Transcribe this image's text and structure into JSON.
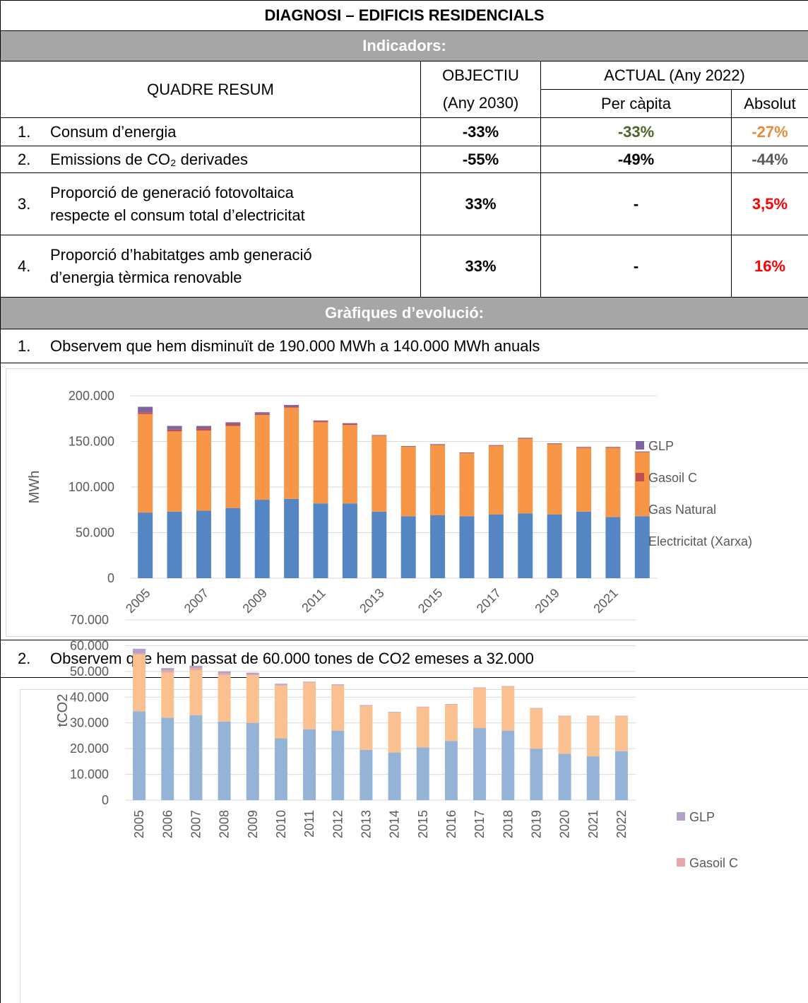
{
  "title": "DIAGNOSI – EDIFICIS RESIDENCIALS",
  "indicators_heading": "Indicadors:",
  "header": {
    "summary": "QUADRE RESUM",
    "target": "OBJECTIU",
    "target_year": "(Any 2030)",
    "current": "ACTUAL (Any 2022)",
    "per_capita": "Per càpita",
    "absolute": "Absolut"
  },
  "rows": [
    {
      "number": "1.",
      "label": [
        "Consum d’energia"
      ],
      "target": "-33%",
      "per_capita": "-33%",
      "per_capita_color": "#4f6228",
      "absolute": "-27%",
      "absolute_color": "#e98a3a"
    },
    {
      "number": "2.",
      "label": [
        "Emissions de CO₂ derivades"
      ],
      "target": "-55%",
      "per_capita": "-49%",
      "per_capita_color": "#000000",
      "absolute": "-44%",
      "absolute_color": "#595959"
    },
    {
      "number": "3.",
      "label": [
        "Proporció de generació fotovoltaica",
        "respecte el consum total d’electricitat"
      ],
      "target": "33%",
      "per_capita": "-",
      "per_capita_color": "#000000",
      "absolute": "3,5%",
      "absolute_color": "#ff0000"
    },
    {
      "number": "4.",
      "label": [
        "Proporció d’habitatges amb generació",
        "d’energia tèrmica renovable"
      ],
      "target": "33%",
      "per_capita": "-",
      "per_capita_color": "#000000",
      "absolute": "16%",
      "absolute_color": "#ff0000"
    }
  ],
  "charts_heading": "Gràfiques d’evolució:",
  "notes": [
    {
      "number": "1.",
      "text": "Observem que hem disminuït de 190.000 MWh a 140.000 MWh anuals"
    },
    {
      "number": "2.",
      "text": "Observem que hem passat de 60.000 tones de CO2 emeses a 32.000"
    }
  ],
  "chart_data": [
    {
      "type": "stacked_bar",
      "ylabel": "MWh",
      "categories": [
        "2005",
        null,
        "2007",
        null,
        "2009",
        null,
        "2011",
        null,
        "2013",
        null,
        "2015",
        null,
        "2017",
        null,
        "2019",
        null,
        "2021",
        null
      ],
      "series": [
        {
          "name": "Electricitat (Xarxa)",
          "color": "#5685c3",
          "values": [
            72000,
            73000,
            74000,
            77000,
            86000,
            87000,
            82000,
            82000,
            73000,
            68000,
            69000,
            68000,
            70000,
            71000,
            70000,
            73000,
            67000,
            68000
          ]
        },
        {
          "name": "Gas Natural",
          "color": "#f79646",
          "values": [
            108000,
            88000,
            88000,
            90000,
            93000,
            100000,
            89000,
            86000,
            83000,
            76000,
            77000,
            69000,
            75000,
            82000,
            77000,
            70000,
            76000,
            70000
          ]
        },
        {
          "name": "Gasoil C",
          "color": "#c0504d",
          "values": [
            2000,
            2000,
            2000,
            2000,
            1000,
            1000,
            1000,
            1000,
            500,
            500,
            500,
            500,
            500,
            500,
            500,
            500,
            500,
            500
          ]
        },
        {
          "name": "GLP",
          "color": "#8064a2",
          "values": [
            6000,
            4000,
            3000,
            2000,
            2000,
            2000,
            1000,
            1000,
            500,
            500,
            500,
            500,
            500,
            500,
            500,
            500,
            500,
            500
          ]
        }
      ],
      "ylim": [
        0,
        200000
      ],
      "yticks": [
        0,
        {
          "value": 50000,
          "label": "50.000"
        },
        {
          "value": 100000,
          "label": "100.000"
        },
        {
          "value": 150000,
          "label": "150.000"
        },
        {
          "value": 200000,
          "label": "200.000"
        }
      ],
      "grid": true
    },
    {
      "type": "stacked_bar",
      "ylabel": "tCO2",
      "categories": [
        "2005",
        "2006",
        "2007",
        "2008",
        "2009",
        "2010",
        "2011",
        "2012",
        "2013",
        "2014",
        "2015",
        "2016",
        "2017",
        "2018",
        "2019",
        "2020",
        "2021",
        "2022"
      ],
      "series": [
        {
          "color": "#95b3d7",
          "values": [
            34500,
            32000,
            33000,
            30500,
            30000,
            24000,
            27500,
            27000,
            19500,
            18500,
            20500,
            23000,
            28000,
            27000,
            20000,
            18000,
            17000,
            19000
          ]
        },
        {
          "color": "#fac090",
          "values": [
            22000,
            17500,
            17500,
            18000,
            18500,
            20500,
            18000,
            17500,
            17000,
            15500,
            15500,
            14000,
            15500,
            17000,
            15500,
            14500,
            15500,
            13500
          ]
        },
        {
          "name": "Gasoil C",
          "color": "#e6a7a5",
          "values": [
            500,
            800,
            800,
            700,
            500,
            300,
            300,
            300,
            200,
            200,
            200,
            200,
            200,
            200,
            200,
            200,
            200,
            200
          ]
        },
        {
          "name": "GLP",
          "color": "#b3a2c7",
          "values": [
            1800,
            1000,
            900,
            800,
            500,
            400,
            200,
            200,
            200,
            100,
            100,
            100,
            100,
            100,
            100,
            100,
            100,
            100
          ]
        }
      ],
      "ylim": [
        0,
        70000
      ],
      "yticks": [
        0,
        {
          "value": 10000,
          "label": "10.000"
        },
        {
          "value": 20000,
          "label": "20.000"
        },
        {
          "value": 30000,
          "label": "30.000"
        },
        {
          "value": 40000,
          "label": "40.000"
        },
        {
          "value": 50000,
          "label": "50.000"
        },
        {
          "value": 60000,
          "label": "60.000"
        },
        {
          "value": 70000,
          "label": "70.000"
        }
      ],
      "grid": true
    }
  ]
}
